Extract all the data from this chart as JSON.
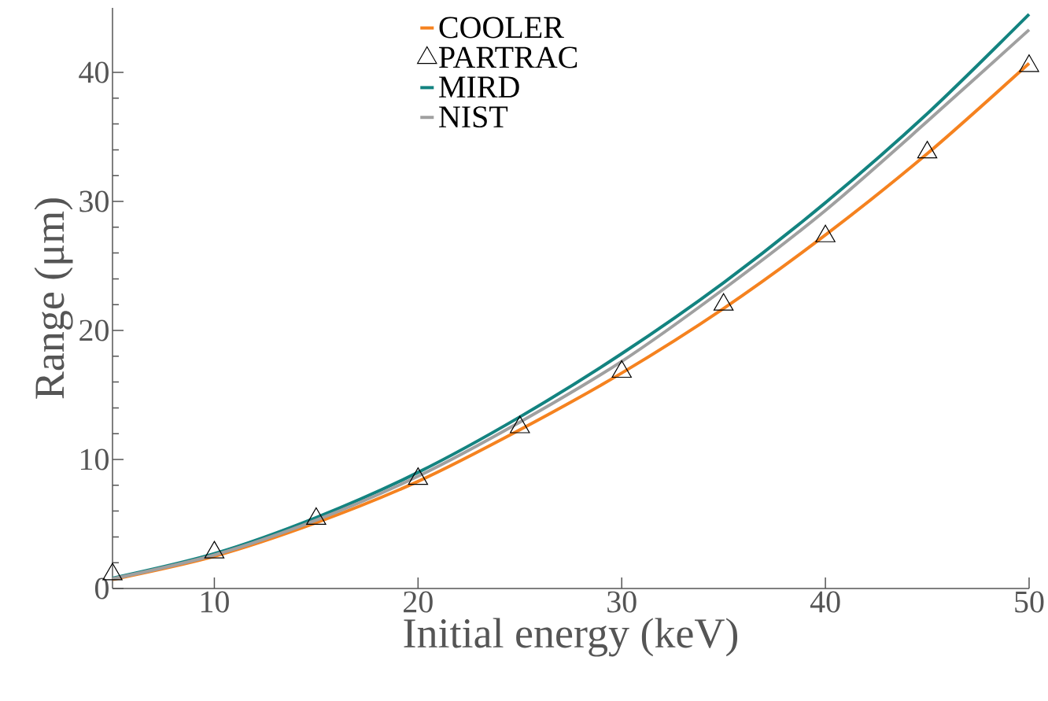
{
  "chart_data": {
    "type": "line",
    "xlabel": "Initial energy (keV)",
    "ylabel": "Range (μm)",
    "x": [
      5,
      10,
      15,
      20,
      25,
      30,
      35,
      40,
      45,
      50
    ],
    "series": [
      {
        "name": "COOLER",
        "color": "#f5821f",
        "values": [
          0.7,
          2.5,
          5.1,
          8.3,
          12.3,
          16.7,
          21.7,
          27.4,
          33.7,
          40.7
        ]
      },
      {
        "name": "PARTRAC",
        "type": "scatter",
        "marker": "triangle",
        "color": "#000000",
        "values": [
          1.1,
          2.8,
          5.4,
          8.5,
          12.5,
          16.8,
          22.0,
          27.3,
          33.8,
          40.5
        ]
      },
      {
        "name": "MIRD",
        "color": "#138380",
        "values": [
          0.8,
          2.7,
          5.5,
          9.0,
          13.3,
          18.2,
          23.7,
          29.9,
          36.8,
          44.5
        ]
      },
      {
        "name": "NIST",
        "color": "#a0a0a0",
        "values": [
          0.75,
          2.6,
          5.3,
          8.7,
          12.9,
          17.6,
          23.2,
          29.3,
          36.2,
          43.3
        ]
      }
    ],
    "xlim": [
      5,
      50
    ],
    "ylim": [
      0,
      45
    ],
    "xticks": [
      10,
      20,
      30,
      40,
      50
    ],
    "yticks": [
      0,
      10,
      20,
      30,
      40
    ],
    "legend": "top",
    "grid": false
  }
}
